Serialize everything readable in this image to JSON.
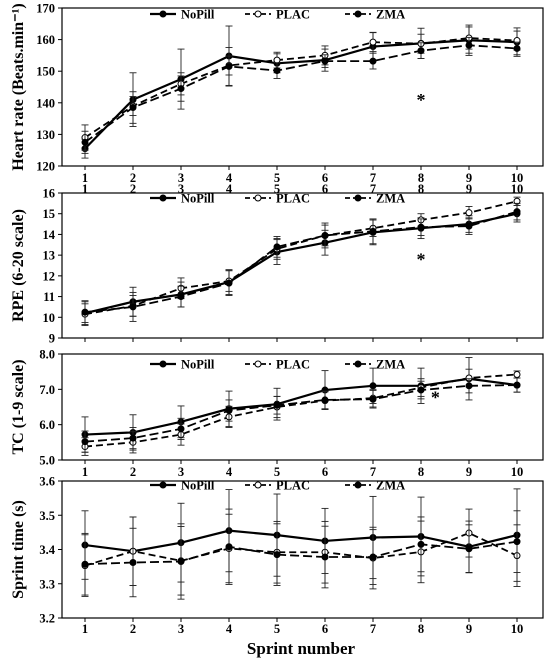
{
  "x_axis_label": "Sprint number",
  "chart_data": [
    {
      "type": "line",
      "ylabel": "Heart rate (Beats.min⁻¹)",
      "xlabel": "",
      "categories": [
        "1",
        "2",
        "3",
        "4",
        "5",
        "6",
        "7",
        "8",
        "9",
        "10"
      ],
      "ylim": [
        120,
        170
      ],
      "yticks": [
        120,
        130,
        140,
        150,
        160,
        170
      ],
      "legend": "top",
      "annotation": {
        "text": "*",
        "x": 8,
        "y": 139
      },
      "series": [
        {
          "name": "NoPill",
          "values": [
            125.5,
            141,
            147.5,
            154.8,
            152.5,
            153.5,
            157.8,
            158.8,
            159.8,
            159.2
          ],
          "errors": [
            3,
            8.5,
            9.5,
            9.5,
            3,
            3.5,
            4.5,
            4.8,
            4.8,
            4.5
          ]
        },
        {
          "name": "PLAC",
          "values": [
            129,
            139,
            146,
            151.8,
            153.5,
            155,
            159.2,
            158.7,
            160.5,
            159.7
          ],
          "errors": [
            4,
            3,
            3.5,
            3,
            2.5,
            3,
            3,
            3,
            3.5,
            3
          ]
        },
        {
          "name": "ZMA",
          "values": [
            127.5,
            138.5,
            144.5,
            151.5,
            150.2,
            153.2,
            153.2,
            156.5,
            158.2,
            157.2
          ],
          "errors": [
            3.5,
            5,
            4,
            6,
            2.5,
            2,
            2.5,
            2.5,
            2.5,
            2
          ]
        }
      ]
    },
    {
      "type": "line",
      "ylabel": "RPE (6-20 scale)",
      "xlabel": "",
      "categories": [
        "1",
        "2",
        "3",
        "4",
        "5",
        "6",
        "7",
        "8",
        "9",
        "10"
      ],
      "ylim": [
        9,
        16
      ],
      "yticks": [
        9,
        10,
        11,
        12,
        13,
        14,
        15,
        16
      ],
      "legend": "top",
      "annotation": {
        "text": "*",
        "x": 8,
        "y": 12.5
      },
      "series": [
        {
          "name": "NoPill",
          "values": [
            10.2,
            10.75,
            11.1,
            11.7,
            13.15,
            13.6,
            14.1,
            14.3,
            14.5,
            15.0
          ],
          "errors": [
            0.6,
            0.7,
            0.6,
            0.6,
            0.6,
            0.6,
            0.6,
            0.5,
            0.4,
            0.4
          ]
        },
        {
          "name": "PLAC",
          "values": [
            10.15,
            10.55,
            11.4,
            11.75,
            13.3,
            13.95,
            14.3,
            14.7,
            15.05,
            15.6
          ],
          "errors": [
            0.5,
            0.5,
            0.5,
            0.5,
            0.5,
            0.5,
            0.4,
            0.3,
            0.3,
            0.2
          ]
        },
        {
          "name": "ZMA",
          "values": [
            10.25,
            10.5,
            11.0,
            11.65,
            13.4,
            13.95,
            14.15,
            14.35,
            14.4,
            15.1
          ],
          "errors": [
            0.5,
            0.7,
            0.5,
            0.6,
            0.5,
            0.6,
            0.6,
            0.4,
            0.4,
            0.4
          ]
        }
      ]
    },
    {
      "type": "line",
      "ylabel": "TC (1-9 scale)",
      "xlabel": "",
      "categories": [
        "1",
        "2",
        "3",
        "4",
        "5",
        "6",
        "7",
        "8",
        "9",
        "10"
      ],
      "ylim": [
        5.0,
        8.0
      ],
      "yticks": [
        5.0,
        6.0,
        7.0,
        8.0
      ],
      "ytick_labels": [
        "5.0",
        "6.0",
        "7.0",
        "8.0"
      ],
      "legend": "top",
      "annotation": {
        "text": "*",
        "x": 8.3,
        "y": 6.6
      },
      "series": [
        {
          "name": "NoPill",
          "values": [
            5.72,
            5.78,
            6.08,
            6.45,
            6.58,
            6.98,
            7.1,
            7.1,
            7.3,
            7.12
          ],
          "errors": [
            0.5,
            0.5,
            0.45,
            0.5,
            0.45,
            0.55,
            0.5,
            0.5,
            0.6,
            0.2
          ]
        },
        {
          "name": "PLAC",
          "values": [
            5.38,
            5.5,
            5.72,
            6.22,
            6.5,
            6.68,
            6.75,
            7.05,
            7.32,
            7.42
          ],
          "errors": [
            0.25,
            0.3,
            0.3,
            0.3,
            0.3,
            0.25,
            0.25,
            0.25,
            0.25,
            0.1
          ]
        },
        {
          "name": "ZMA",
          "values": [
            5.52,
            5.62,
            5.88,
            6.4,
            6.55,
            6.7,
            6.72,
            6.98,
            7.1,
            7.12
          ],
          "errors": [
            0.3,
            0.3,
            0.3,
            0.3,
            0.25,
            0.25,
            0.25,
            0.25,
            0.2,
            0.2
          ]
        }
      ]
    },
    {
      "type": "line",
      "ylabel": "Sprint time (s)",
      "xlabel": "",
      "categories": [
        "1",
        "2",
        "3",
        "4",
        "5",
        "6",
        "7",
        "8",
        "9",
        "10"
      ],
      "ylim": [
        3.2,
        3.6
      ],
      "yticks": [
        3.2,
        3.3,
        3.4,
        3.5,
        3.6
      ],
      "ytick_labels": [
        "3.2",
        "3.3",
        "3.4",
        "3.5",
        "3.6"
      ],
      "legend": "top",
      "series": [
        {
          "name": "NoPill",
          "values": [
            3.413,
            3.395,
            3.42,
            3.455,
            3.442,
            3.425,
            3.435,
            3.438,
            3.408,
            3.442
          ],
          "errors": [
            0.1,
            0.1,
            0.115,
            0.12,
            0.12,
            0.095,
            0.12,
            0.115,
            0.075,
            0.135
          ]
        },
        {
          "name": "PLAC",
          "values": [
            3.353,
            3.395,
            3.367,
            3.403,
            3.392,
            3.392,
            3.375,
            3.393,
            3.448,
            3.382
          ],
          "errors": [
            0.09,
            0.1,
            0.1,
            0.1,
            0.09,
            0.09,
            0.09,
            0.09,
            0.07,
            0.09
          ]
        },
        {
          "name": "ZMA",
          "values": [
            3.357,
            3.362,
            3.365,
            3.408,
            3.385,
            3.378,
            3.378,
            3.415,
            3.402,
            3.423
          ],
          "errors": [
            0.09,
            0.1,
            0.11,
            0.11,
            0.09,
            0.09,
            0.08,
            0.08,
            0.07,
            0.09
          ]
        }
      ]
    }
  ]
}
